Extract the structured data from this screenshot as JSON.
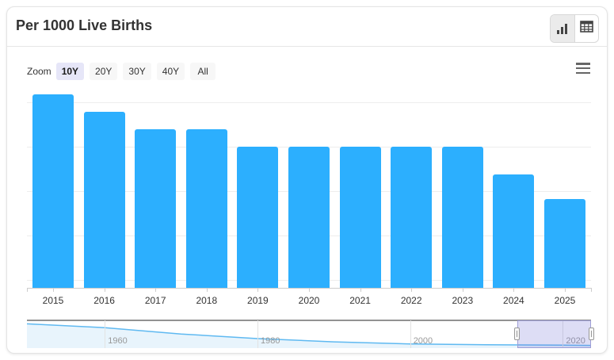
{
  "header": {
    "title": "Per 1000 Live Births",
    "view_toggle": {
      "chart_view_icon": "bar-chart-icon",
      "table_view_icon": "table-icon"
    }
  },
  "range_selector": {
    "zoom_label": "Zoom",
    "buttons": [
      {
        "label": "10Y",
        "selected": true
      },
      {
        "label": "20Y",
        "selected": false
      },
      {
        "label": "30Y",
        "selected": false
      },
      {
        "label": "40Y",
        "selected": false
      },
      {
        "label": "All",
        "selected": false
      }
    ]
  },
  "context_menu_icon": "hamburger-menu-icon",
  "chart_data": {
    "type": "bar",
    "title": "Per 1000 Live Births",
    "categories": [
      "2015",
      "2016",
      "2017",
      "2018",
      "2019",
      "2020",
      "2021",
      "2022",
      "2023",
      "2024",
      "2025"
    ],
    "values": [
      5.9,
      5.8,
      5.7,
      5.7,
      5.6,
      5.6,
      5.6,
      5.6,
      5.6,
      5.44,
      5.3
    ],
    "xlabel": "",
    "ylabel": "",
    "ylim": [
      4.787,
      5.96
    ],
    "gridline_values": [
      5.855,
      5.6,
      5.345,
      5.09,
      4.835
    ],
    "grid": true,
    "legend": false,
    "y_axis_labels_visible": false,
    "bar_color": "#2caffe",
    "navigator": {
      "type": "area",
      "x": [
        1949.8,
        1960,
        1970,
        1980,
        1990,
        2000,
        2010,
        2020,
        2023.7
      ],
      "values": [
        29.2,
        25,
        18,
        13,
        9.4,
        7.1,
        6.2,
        5.7,
        5.45
      ],
      "xlim": [
        1949.8,
        2023.7
      ],
      "ylim": [
        2.5,
        33
      ],
      "tick_years": [
        1960,
        1980,
        2000,
        2020
      ],
      "tick_labels": [
        "1960",
        "1980",
        "2000",
        "2020"
      ],
      "selected_range": [
        2014,
        2023.7
      ],
      "line_color": "#5fb9f1",
      "fill_color": "#e8f4fc",
      "mask_color": "rgba(118,118,216,0.25)"
    }
  },
  "colors": {
    "bar": "#2caffe",
    "selected_button_bg": "#e6e6f8",
    "button_bg": "#f7f7f7",
    "gridline": "#ededed",
    "axis_line": "#cccccc",
    "title_text": "#333333",
    "navigator_outline": "#929292"
  }
}
